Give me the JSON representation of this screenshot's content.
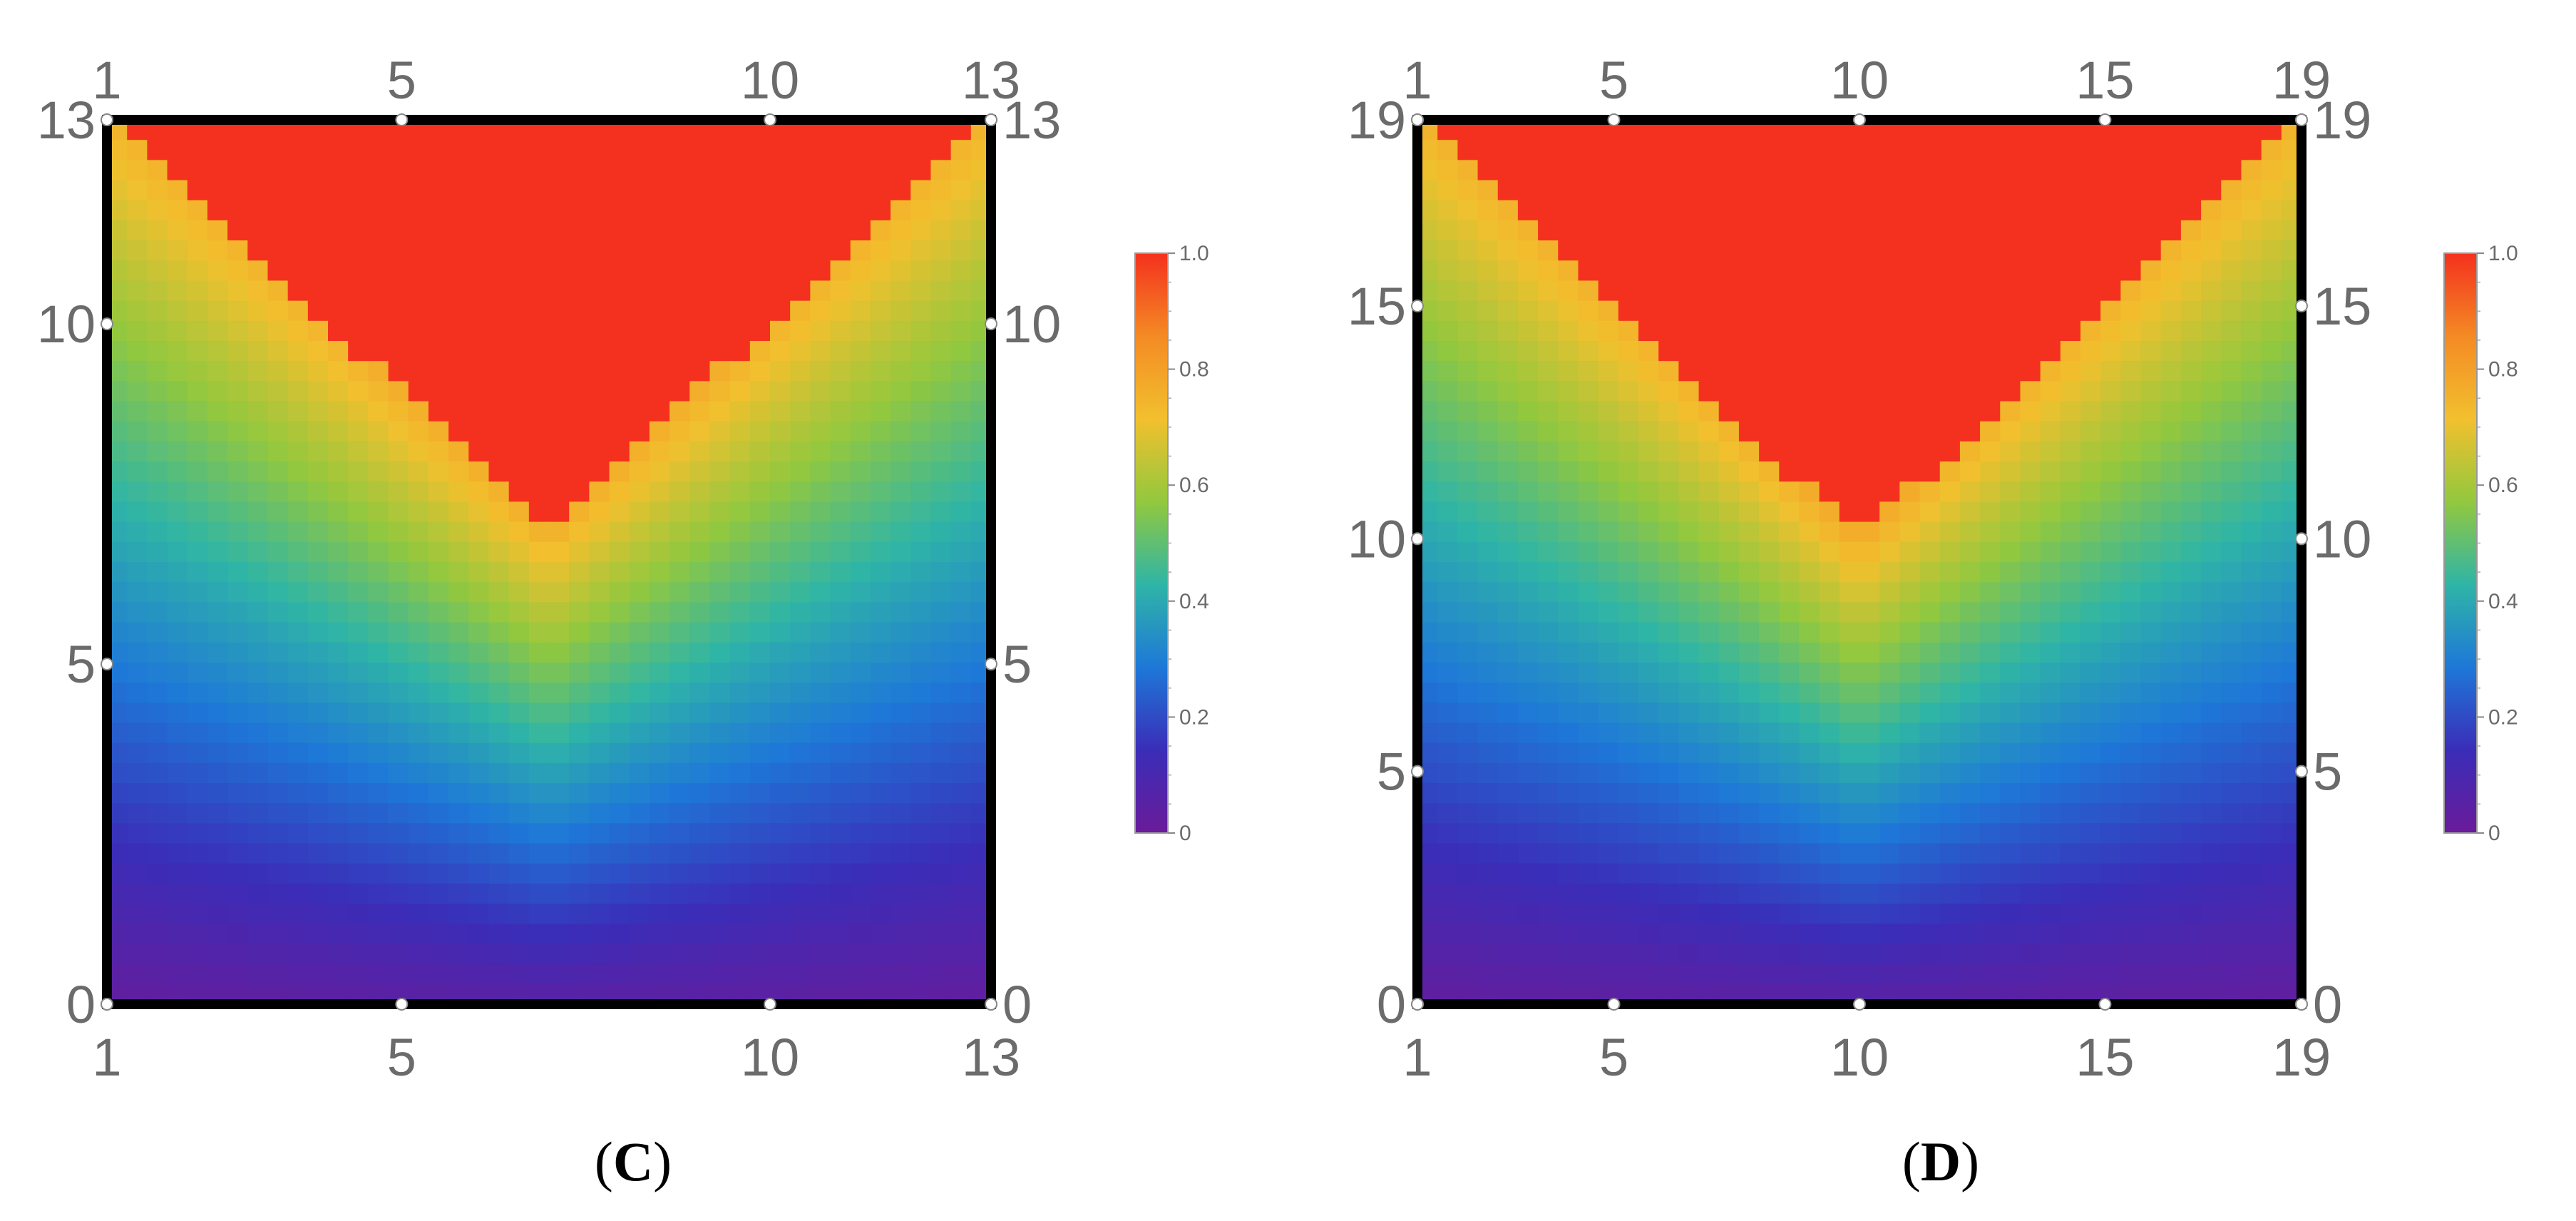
{
  "panels": [
    {
      "caption_open": "(",
      "caption_letter": "C",
      "caption_close": ")"
    },
    {
      "caption_open": "(",
      "caption_letter": "D",
      "caption_close": ")"
    }
  ],
  "chart_data": [
    {
      "type": "heatmap",
      "title": "",
      "xlabel": "",
      "ylabel": "",
      "x_range": [
        1,
        13
      ],
      "y_range": [
        0,
        13
      ],
      "x_ticks": [
        1,
        5,
        10,
        13
      ],
      "y_ticks": [
        0,
        5,
        10,
        13
      ],
      "x_tick_labels": [
        "1",
        "5",
        "10",
        "13"
      ],
      "y_tick_labels": [
        "0",
        "5",
        "10",
        "13"
      ],
      "colorbar": {
        "min": 0,
        "max": 1,
        "ticks": [
          "0",
          "0.2",
          "0.4",
          "0.6",
          "0.8",
          "1.0"
        ],
        "colors": [
          "#6a1b9a",
          "#3a2db8",
          "#1e78d8",
          "#2fb5a6",
          "#92c83e",
          "#f2c02e",
          "#f48a24",
          "#f4311e"
        ]
      },
      "grid": false,
      "legend": "right",
      "model": {
        "apex_x": 7,
        "apex_y": 7,
        "peak_value": 1.0
      }
    },
    {
      "type": "heatmap",
      "title": "",
      "xlabel": "",
      "ylabel": "",
      "x_range": [
        1,
        19
      ],
      "y_range": [
        0,
        19
      ],
      "x_ticks": [
        1,
        5,
        10,
        15,
        19
      ],
      "y_ticks": [
        0,
        5,
        10,
        15,
        19
      ],
      "x_tick_labels": [
        "1",
        "5",
        "10",
        "15",
        "19"
      ],
      "y_tick_labels": [
        "0",
        "5",
        "10",
        "15",
        "19"
      ],
      "colorbar": {
        "min": 0,
        "max": 1,
        "ticks": [
          "0",
          "0.2",
          "0.4",
          "0.6",
          "0.8",
          "1.0"
        ],
        "colors": [
          "#6a1b9a",
          "#3a2db8",
          "#1e78d8",
          "#2fb5a6",
          "#92c83e",
          "#f2c02e",
          "#f48a24",
          "#f4311e"
        ]
      },
      "grid": false,
      "legend": "right",
      "model": {
        "apex_x": 10,
        "apex_y": 10,
        "peak_value": 1.0
      }
    }
  ]
}
